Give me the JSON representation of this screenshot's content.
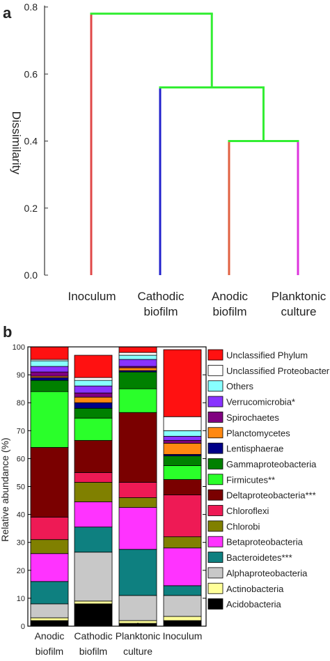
{
  "chart_data": [
    {
      "type": "dendrogram",
      "panel_label": "a",
      "ylabel": "Dissimilarity",
      "ylim": [
        0.0,
        0.8
      ],
      "yticks": [
        "0.0",
        "0.2",
        "0.4",
        "0.6",
        "0.8"
      ],
      "leaves": [
        {
          "lines": [
            "Inoculum"
          ],
          "color": "#e04848"
        },
        {
          "lines": [
            "Cathodic",
            "biofilm"
          ],
          "color": "#2222cc"
        },
        {
          "lines": [
            "Anodic",
            "biofilm"
          ],
          "color": "#e06040"
        },
        {
          "lines": [
            "Planktonic",
            "culture"
          ],
          "color": "#dd33dd"
        }
      ],
      "merges": [
        {
          "left": 2,
          "right": 3,
          "height": 0.4
        },
        {
          "left": 1,
          "right": "m0",
          "height": 0.56
        },
        {
          "left": 0,
          "right": "m1",
          "height": 0.78
        }
      ],
      "link_color": "#33ee33"
    },
    {
      "type": "stacked_bar",
      "panel_label": "b",
      "ylabel": "Relative abundance (%)",
      "ylim": [
        0,
        100
      ],
      "yticks": [
        "0",
        "10",
        "20",
        "30",
        "40",
        "50",
        "60",
        "70",
        "80",
        "90",
        "100"
      ],
      "categories": [
        [
          "Anodic",
          "biofilm"
        ],
        [
          "Cathodic",
          "biofilm"
        ],
        [
          "Planktonic",
          "culture"
        ],
        [
          "Inoculum"
        ]
      ],
      "series": [
        {
          "name": "Acidobacteria",
          "color": "#000000",
          "values": [
            2,
            8,
            1,
            2
          ]
        },
        {
          "name": "Actinobacteria",
          "color": "#ffff99",
          "values": [
            1,
            1,
            1,
            1.5
          ]
        },
        {
          "name": "Alphaproteobacteria",
          "color": "#c8c8c8",
          "values": [
            5,
            17.5,
            9,
            7.5
          ]
        },
        {
          "name": "Bacteroidetes***",
          "color": "#0e8080",
          "values": [
            8,
            9,
            16.5,
            3.5
          ]
        },
        {
          "name": "Betaproteobacteria",
          "color": "#ff33ff",
          "values": [
            10,
            9,
            15,
            13.5
          ]
        },
        {
          "name": "Chlorobi",
          "color": "#808000",
          "values": [
            5,
            7,
            3.5,
            4
          ]
        },
        {
          "name": "Chloroflexi",
          "color": "#ee1a55",
          "values": [
            8,
            3.5,
            5.5,
            15
          ]
        },
        {
          "name": "Deltaproteobacteria***",
          "color": "#7a0000",
          "values": [
            25,
            11.5,
            25,
            5.5
          ]
        },
        {
          "name": "Firmicutes**",
          "color": "#2aff2a",
          "values": [
            20,
            8,
            8.5,
            5
          ]
        },
        {
          "name": "Gammaproteobacteria",
          "color": "#008000",
          "values": [
            4,
            3.5,
            6,
            3.5
          ]
        },
        {
          "name": "Lentisphaerae",
          "color": "#000088",
          "values": [
            1,
            2,
            0.5,
            0.5
          ]
        },
        {
          "name": "Planctomycetes",
          "color": "#ff8811",
          "values": [
            0.5,
            2,
            1,
            4
          ]
        },
        {
          "name": "Spirochaetes",
          "color": "#800080",
          "values": [
            1.5,
            1.5,
            0.5,
            1
          ]
        },
        {
          "name": "Verrucomicrobia*",
          "color": "#8833ff",
          "values": [
            2,
            2.5,
            2.5,
            1.5
          ]
        },
        {
          "name": "Others",
          "color": "#88ffff",
          "values": [
            2,
            2,
            1.5,
            2
          ]
        },
        {
          "name": "Unclassified Proteobacteria",
          "color": "#ffffff",
          "values": [
            0.5,
            1,
            1,
            5
          ]
        },
        {
          "name": "Unclassified Phylum",
          "color": "#ff1111",
          "values": [
            4.5,
            8,
            2,
            24
          ]
        }
      ]
    }
  ]
}
